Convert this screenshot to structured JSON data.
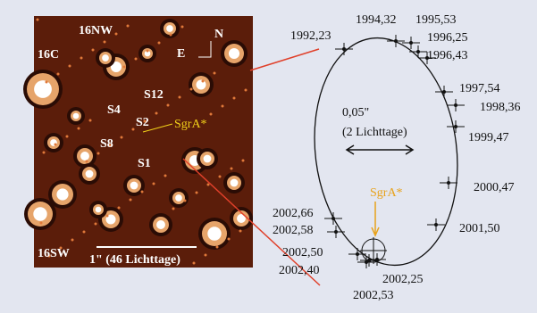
{
  "image": {
    "labels": [
      "16NW",
      "16C",
      "N",
      "E",
      "S12",
      "S4",
      "S2",
      "S8",
      "S1",
      "16SW"
    ],
    "target": "SgrA*",
    "scale": "1\" (46 Lichttage)"
  },
  "orbit": {
    "scale": [
      "0,05\"",
      "(2 Lichttage)"
    ],
    "target": "SgrA*",
    "epochs": [
      "1992,23",
      "1994,32",
      "1995,53",
      "1996,25",
      "1996,43",
      "1997,54",
      "1998,36",
      "1999,47",
      "2000,47",
      "2001,50",
      "2002,66",
      "2002,58",
      "2002,50",
      "2002,40",
      "2002,25",
      "2002,53"
    ]
  }
}
